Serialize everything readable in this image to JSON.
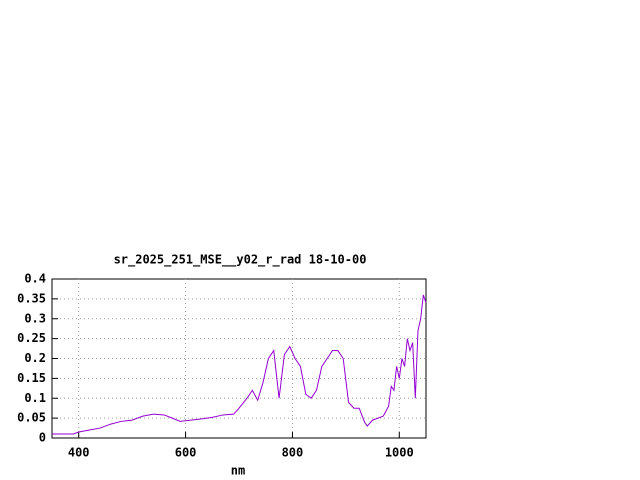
{
  "chart_data": {
    "type": "line",
    "title": "sr_2025_251_MSE__y02_r_rad 18-10-00",
    "xlabel": "nm",
    "x": [
      350,
      390,
      400,
      420,
      440,
      460,
      480,
      500,
      520,
      540,
      560,
      575,
      590,
      610,
      630,
      650,
      670,
      690,
      700,
      715,
      725,
      735,
      745,
      755,
      765,
      775,
      785,
      795,
      805,
      815,
      825,
      835,
      845,
      855,
      865,
      875,
      885,
      895,
      905,
      915,
      925,
      935,
      940,
      950,
      960,
      970,
      980,
      985,
      990,
      995,
      1000,
      1005,
      1010,
      1015,
      1020,
      1025,
      1030,
      1035,
      1040,
      1045,
      1050
    ],
    "y": [
      0.01,
      0.01,
      0.015,
      0.02,
      0.025,
      0.035,
      0.042,
      0.045,
      0.055,
      0.06,
      0.058,
      0.05,
      0.042,
      0.045,
      0.048,
      0.052,
      0.058,
      0.06,
      0.075,
      0.1,
      0.12,
      0.095,
      0.14,
      0.2,
      0.22,
      0.1,
      0.21,
      0.23,
      0.2,
      0.18,
      0.11,
      0.1,
      0.12,
      0.18,
      0.2,
      0.22,
      0.22,
      0.2,
      0.09,
      0.075,
      0.075,
      0.04,
      0.03,
      0.045,
      0.05,
      0.055,
      0.08,
      0.13,
      0.12,
      0.18,
      0.15,
      0.2,
      0.18,
      0.25,
      0.22,
      0.24,
      0.1,
      0.27,
      0.3,
      0.36,
      0.34
    ],
    "color": "#9400d3",
    "xlim": [
      350,
      1050
    ],
    "xticks": [
      400,
      600,
      800,
      1000
    ],
    "ylim": [
      0,
      0.4
    ],
    "yticks": [
      0,
      0.05,
      0.1,
      0.15,
      0.2,
      0.25,
      0.3,
      0.35,
      0.4
    ],
    "grid": true
  }
}
